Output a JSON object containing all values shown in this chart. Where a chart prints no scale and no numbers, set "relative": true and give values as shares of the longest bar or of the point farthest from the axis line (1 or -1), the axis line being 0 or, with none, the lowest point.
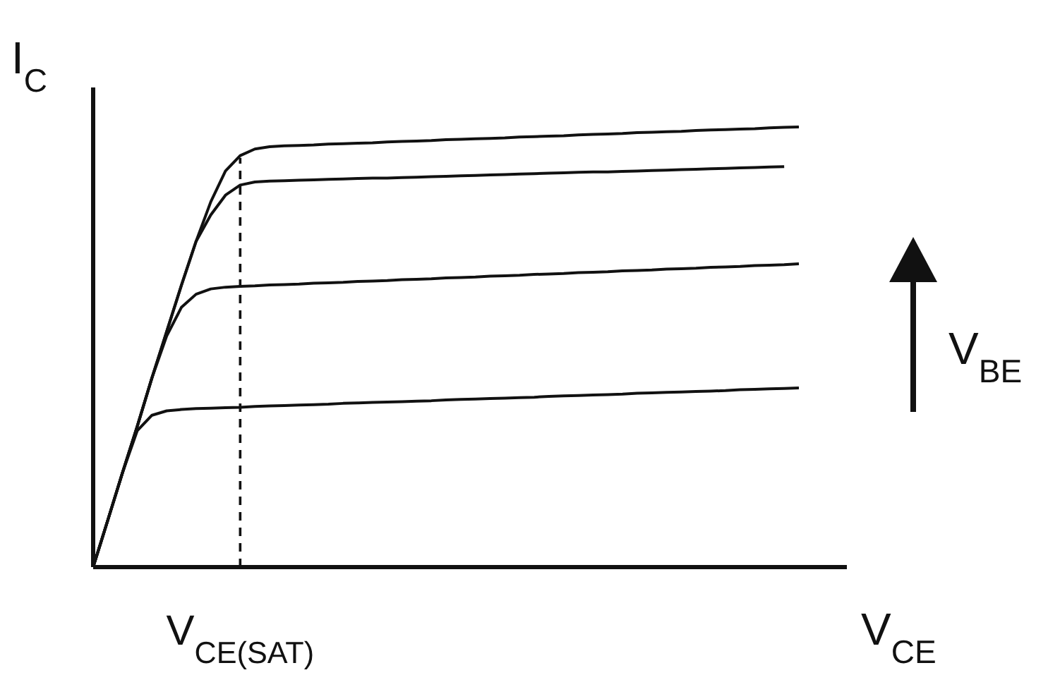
{
  "chart_data": {
    "type": "line",
    "relative": true,
    "xlabel": "V$_{CE}$",
    "ylabel": "I$_{C}$",
    "categories": [
      null,
      null,
      null,
      null,
      null,
      null,
      null,
      null,
      null,
      null,
      null,
      null,
      null,
      null,
      null,
      null,
      null,
      null,
      null,
      null,
      null,
      null,
      null,
      null,
      null,
      null,
      null,
      null,
      null,
      null,
      null,
      null,
      null,
      null,
      null,
      null,
      null,
      null,
      null,
      null,
      null,
      null,
      null,
      null,
      null,
      null,
      null,
      null,
      null
    ],
    "series": [
      {
        "color": "#111111",
        "values": [
          0,
          0.107,
          0.215,
          0.32,
          0.43,
          0.535,
          0.64,
          0.74,
          0.83,
          0.9,
          0.935,
          0.95,
          0.955,
          0.957,
          0.958,
          0.959,
          0.961,
          0.962,
          0.963,
          0.964,
          0.966,
          0.967,
          0.968,
          0.969,
          0.971,
          0.972,
          0.973,
          0.974,
          0.975,
          0.977,
          0.978,
          0.979,
          0.98,
          0.982,
          0.983,
          0.984,
          0.985,
          0.987,
          0.988,
          0.989,
          0.99,
          0.992,
          0.993,
          0.994,
          0.995,
          0.996,
          0.998,
          0.999,
          1.0
        ]
      },
      {
        "color": "#111111",
        "values": [
          0,
          0.107,
          0.215,
          0.32,
          0.43,
          0.535,
          0.64,
          0.74,
          0.8,
          0.845,
          0.868,
          0.875,
          0.877,
          0.878,
          0.879,
          0.88,
          0.881,
          0.882,
          0.883,
          0.884,
          0.884,
          0.885,
          0.886,
          0.887,
          0.888,
          0.889,
          0.89,
          0.891,
          0.892,
          0.893,
          0.894,
          0.895,
          0.896,
          0.897,
          0.898,
          0.898,
          0.899,
          0.9,
          0.901,
          0.902,
          0.903,
          0.904,
          0.905,
          0.906,
          0.907,
          0.908,
          0.909,
          0.91,
          null
        ]
      },
      {
        "color": "#111111",
        "values": [
          0,
          0.107,
          0.215,
          0.32,
          0.43,
          0.525,
          0.59,
          0.62,
          0.632,
          0.636,
          0.638,
          0.639,
          0.641,
          0.642,
          0.643,
          0.645,
          0.646,
          0.647,
          0.649,
          0.65,
          0.651,
          0.653,
          0.654,
          0.655,
          0.657,
          0.658,
          0.659,
          0.661,
          0.662,
          0.663,
          0.665,
          0.666,
          0.667,
          0.669,
          0.67,
          0.671,
          0.673,
          0.674,
          0.675,
          0.677,
          0.678,
          0.679,
          0.681,
          0.682,
          0.683,
          0.685,
          0.686,
          0.687,
          0.689
        ]
      },
      {
        "color": "#111111",
        "values": [
          0,
          0.107,
          0.215,
          0.31,
          0.345,
          0.355,
          0.358,
          0.36,
          0.361,
          0.362,
          0.363,
          0.365,
          0.366,
          0.367,
          0.368,
          0.369,
          0.37,
          0.372,
          0.373,
          0.374,
          0.375,
          0.376,
          0.377,
          0.378,
          0.38,
          0.381,
          0.382,
          0.383,
          0.384,
          0.385,
          0.386,
          0.388,
          0.389,
          0.39,
          0.391,
          0.392,
          0.393,
          0.395,
          0.396,
          0.397,
          0.398,
          0.399,
          0.4,
          0.401,
          0.403,
          0.404,
          0.405,
          0.406,
          0.407
        ]
      }
    ],
    "annotations": [
      "V$_{CE(SAT)}$",
      "V$_{BE}$"
    ]
  }
}
